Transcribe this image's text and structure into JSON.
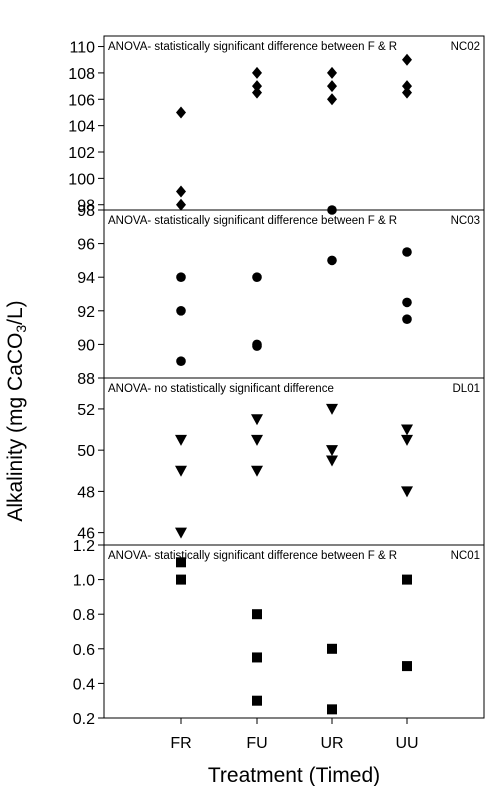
{
  "chart_data": {
    "type": "scatter",
    "categories": [
      "FR",
      "FU",
      "UR",
      "UU"
    ],
    "xlabel": "Treatment (Timed)",
    "ylabel": {
      "main": "Alkalinity (mg CaCO",
      "sub": "3",
      "end": "/L)"
    },
    "panels": [
      {
        "note": "ANOVA- statistically significant difference between F & R",
        "code": "NC02",
        "marker": "diamond",
        "ylim": [
          97.6,
          110.8
        ],
        "ticks": [
          "98",
          "100",
          "102",
          "104",
          "106",
          "108",
          "110"
        ],
        "tick_values": [
          98,
          100,
          102,
          104,
          106,
          108,
          110
        ],
        "points": [
          {
            "x": "FR",
            "y": 105
          },
          {
            "x": "FR",
            "y": 99
          },
          {
            "x": "FR",
            "y": 98
          },
          {
            "x": "FU",
            "y": 108
          },
          {
            "x": "FU",
            "y": 107
          },
          {
            "x": "FU",
            "y": 106.5
          },
          {
            "x": "UR",
            "y": 108
          },
          {
            "x": "UR",
            "y": 107
          },
          {
            "x": "UR",
            "y": 106
          },
          {
            "x": "UU",
            "y": 109
          },
          {
            "x": "UU",
            "y": 107
          },
          {
            "x": "UU",
            "y": 106.5
          }
        ]
      },
      {
        "note": "ANOVA- statistically significant difference between F & R",
        "code": "NC03",
        "marker": "circle",
        "ylim": [
          88,
          98
        ],
        "ticks": [
          "88",
          "90",
          "92",
          "94",
          "96",
          "98"
        ],
        "tick_values": [
          88,
          90,
          92,
          94,
          96,
          98
        ],
        "points": [
          {
            "x": "FR",
            "y": 94
          },
          {
            "x": "FR",
            "y": 92
          },
          {
            "x": "FR",
            "y": 89
          },
          {
            "x": "FU",
            "y": 94
          },
          {
            "x": "FU",
            "y": 90
          },
          {
            "x": "FU",
            "y": 89.9
          },
          {
            "x": "UR",
            "y": 98
          },
          {
            "x": "UR",
            "y": 95
          },
          {
            "x": "UU",
            "y": 95.5
          },
          {
            "x": "UU",
            "y": 92.5
          },
          {
            "x": "UU",
            "y": 91.5
          }
        ]
      },
      {
        "note": "ANOVA- no statistically significant difference",
        "code": "DL01",
        "marker": "triangle-down",
        "ylim": [
          45.4,
          53.5
        ],
        "ticks": [
          "46",
          "48",
          "50",
          "52"
        ],
        "tick_values": [
          46,
          48,
          50,
          52
        ],
        "points": [
          {
            "x": "FR",
            "y": 50.5
          },
          {
            "x": "FR",
            "y": 49
          },
          {
            "x": "FR",
            "y": 46
          },
          {
            "x": "FU",
            "y": 51.5
          },
          {
            "x": "FU",
            "y": 50.5
          },
          {
            "x": "FU",
            "y": 49
          },
          {
            "x": "UR",
            "y": 52
          },
          {
            "x": "UR",
            "y": 50
          },
          {
            "x": "UR",
            "y": 49.5
          },
          {
            "x": "UU",
            "y": 51
          },
          {
            "x": "UU",
            "y": 50.5
          },
          {
            "x": "UU",
            "y": 48
          }
        ]
      },
      {
        "note": "ANOVA- statistically significant difference between F & R",
        "code": "NC01",
        "marker": "square",
        "ylim": [
          0.2,
          1.2
        ],
        "ticks": [
          "0.2",
          "0.4",
          "0.6",
          "0.8",
          "1.0",
          "1.2"
        ],
        "tick_values": [
          0.2,
          0.4,
          0.6,
          0.8,
          1.0,
          1.2
        ],
        "points": [
          {
            "x": "FR",
            "y": 1.1
          },
          {
            "x": "FR",
            "y": 1.0
          },
          {
            "x": "FU",
            "y": 0.8
          },
          {
            "x": "FU",
            "y": 0.55
          },
          {
            "x": "FU",
            "y": 0.3
          },
          {
            "x": "UR",
            "y": 0.6
          },
          {
            "x": "UR",
            "y": 0.25
          },
          {
            "x": "UU",
            "y": 1.0
          },
          {
            "x": "UU",
            "y": 0.5
          }
        ]
      }
    ]
  }
}
